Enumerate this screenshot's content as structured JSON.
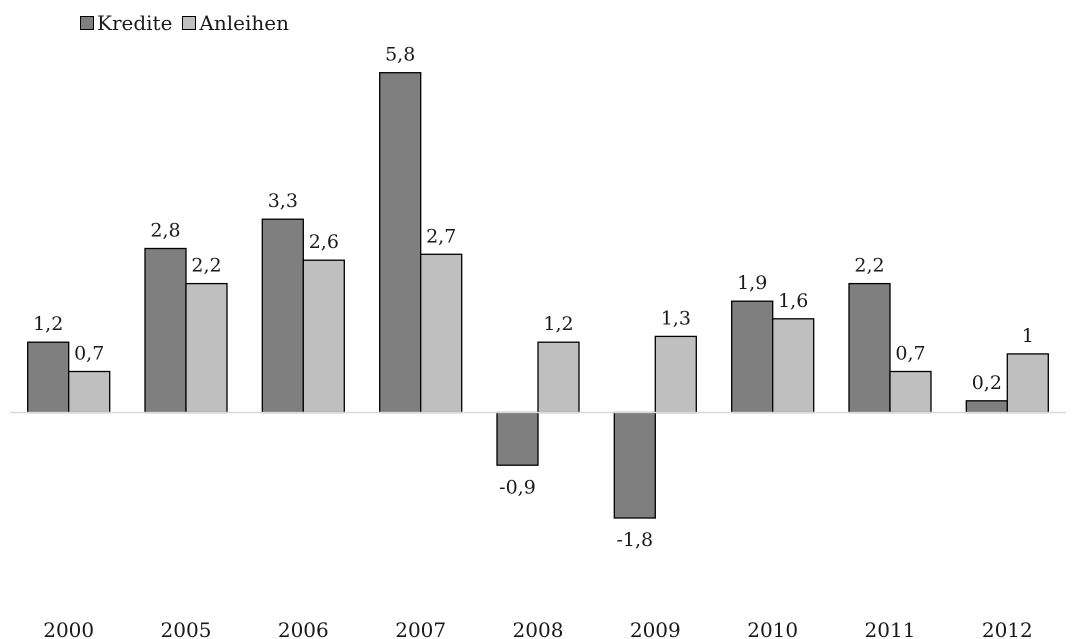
{
  "chart_data": {
    "type": "bar",
    "categories": [
      "2000",
      "2005",
      "2006",
      "2007",
      "2008",
      "2009",
      "2010",
      "2011",
      "2012"
    ],
    "series": [
      {
        "name": "Kredite",
        "values": [
          1.2,
          2.8,
          3.3,
          5.8,
          -0.9,
          -1.8,
          1.9,
          2.2,
          0.2
        ],
        "labels": [
          "1,2",
          "2,8",
          "3,3",
          "5,8",
          "-0,9",
          "-1,8",
          "1,9",
          "2,2",
          "0,2"
        ],
        "color": "#7f7f7f"
      },
      {
        "name": "Anleihen",
        "values": [
          0.7,
          2.2,
          2.6,
          2.7,
          1.2,
          1.3,
          1.6,
          0.7,
          1.0
        ],
        "labels": [
          "0,7",
          "2,2",
          "2,6",
          "2,7",
          "1,2",
          "1,3",
          "1,6",
          "0,7",
          "1"
        ],
        "color": "#bfbfbf"
      }
    ],
    "ylim": [
      -3.2,
      6.7
    ],
    "grid": false,
    "legend_position": "top-left"
  }
}
